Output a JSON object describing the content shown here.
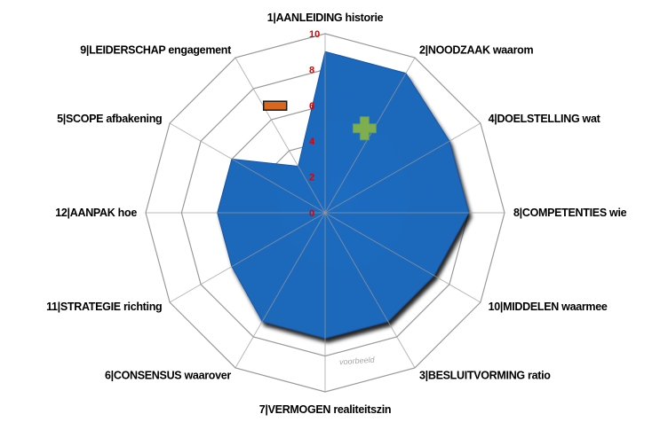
{
  "chart_data": {
    "type": "radar",
    "categories": [
      "1|AANLEIDING historie",
      "2|NOODZAAK waarom",
      "4|DOELSTELLING wat",
      "8|COMPETENTIES wie",
      "10|MIDDELEN waarmee",
      "3|BESLUITVORMING ratio",
      "7|VERMOGEN realiteitszin",
      "6|CONSENSUS waarover",
      "11|STRATEGIE richting",
      "12|AANPAK hoe",
      "5|SCOPE afbakening",
      "9|LEIDERSCHAP engagement"
    ],
    "series": [
      {
        "values": [
          9,
          9,
          8,
          8,
          7,
          7,
          7,
          7,
          6,
          6,
          6,
          3
        ],
        "color": "#1f6fc5"
      }
    ],
    "ticks": [
      "0",
      "2",
      "4",
      "6",
      "8",
      "10"
    ],
    "rlim": [
      0,
      10
    ],
    "tick_color": "#e00000",
    "markers": [
      {
        "shape": "plus",
        "color": "#7fae4f",
        "angle_deg": 25,
        "r": 5.2
      },
      {
        "shape": "bar",
        "color": "#d8661c",
        "angle_deg": -25,
        "r": 6.6
      }
    ],
    "watermark": "voorbeeld",
    "grid": true
  }
}
